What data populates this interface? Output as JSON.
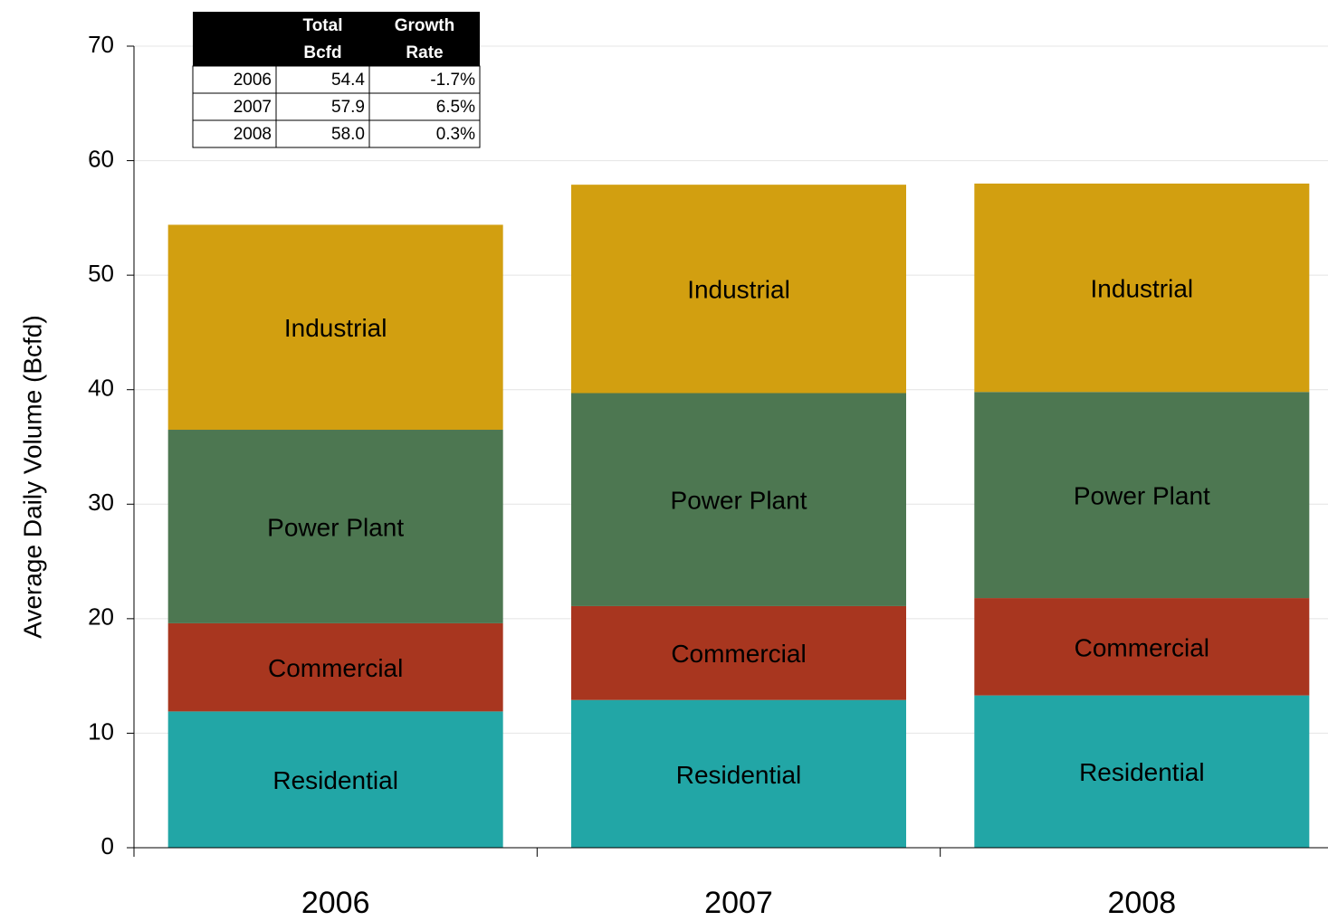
{
  "chart_data": {
    "type": "stacked_bar",
    "y_label": "Average Daily Volume (Bcfd)",
    "categories": [
      "2006",
      "2007",
      "2008"
    ],
    "series": [
      {
        "name": "Residential",
        "color": "#22a6a6",
        "values": [
          11.9,
          12.9,
          13.3
        ]
      },
      {
        "name": "Commercial",
        "color": "#a8361f",
        "values": [
          7.7,
          8.2,
          8.5
        ]
      },
      {
        "name": "Power Plant",
        "color": "#4d7751",
        "values": [
          16.9,
          18.6,
          18.0
        ]
      },
      {
        "name": "Industrial",
        "color": "#d29f10",
        "values": [
          17.9,
          18.2,
          18.2
        ]
      }
    ],
    "ylim": [
      0,
      70
    ],
    "yticks": [
      0,
      10,
      20,
      30,
      40,
      50,
      60,
      70
    ],
    "grid": true,
    "table": {
      "columns": [
        [
          "Total",
          "Bcfd"
        ],
        [
          "Growth",
          "Rate"
        ]
      ],
      "rows": [
        [
          "2006",
          "54.4",
          "-1.7%"
        ],
        [
          "2007",
          "57.9",
          "6.5%"
        ],
        [
          "2008",
          "58.0",
          "0.3%"
        ]
      ]
    }
  }
}
